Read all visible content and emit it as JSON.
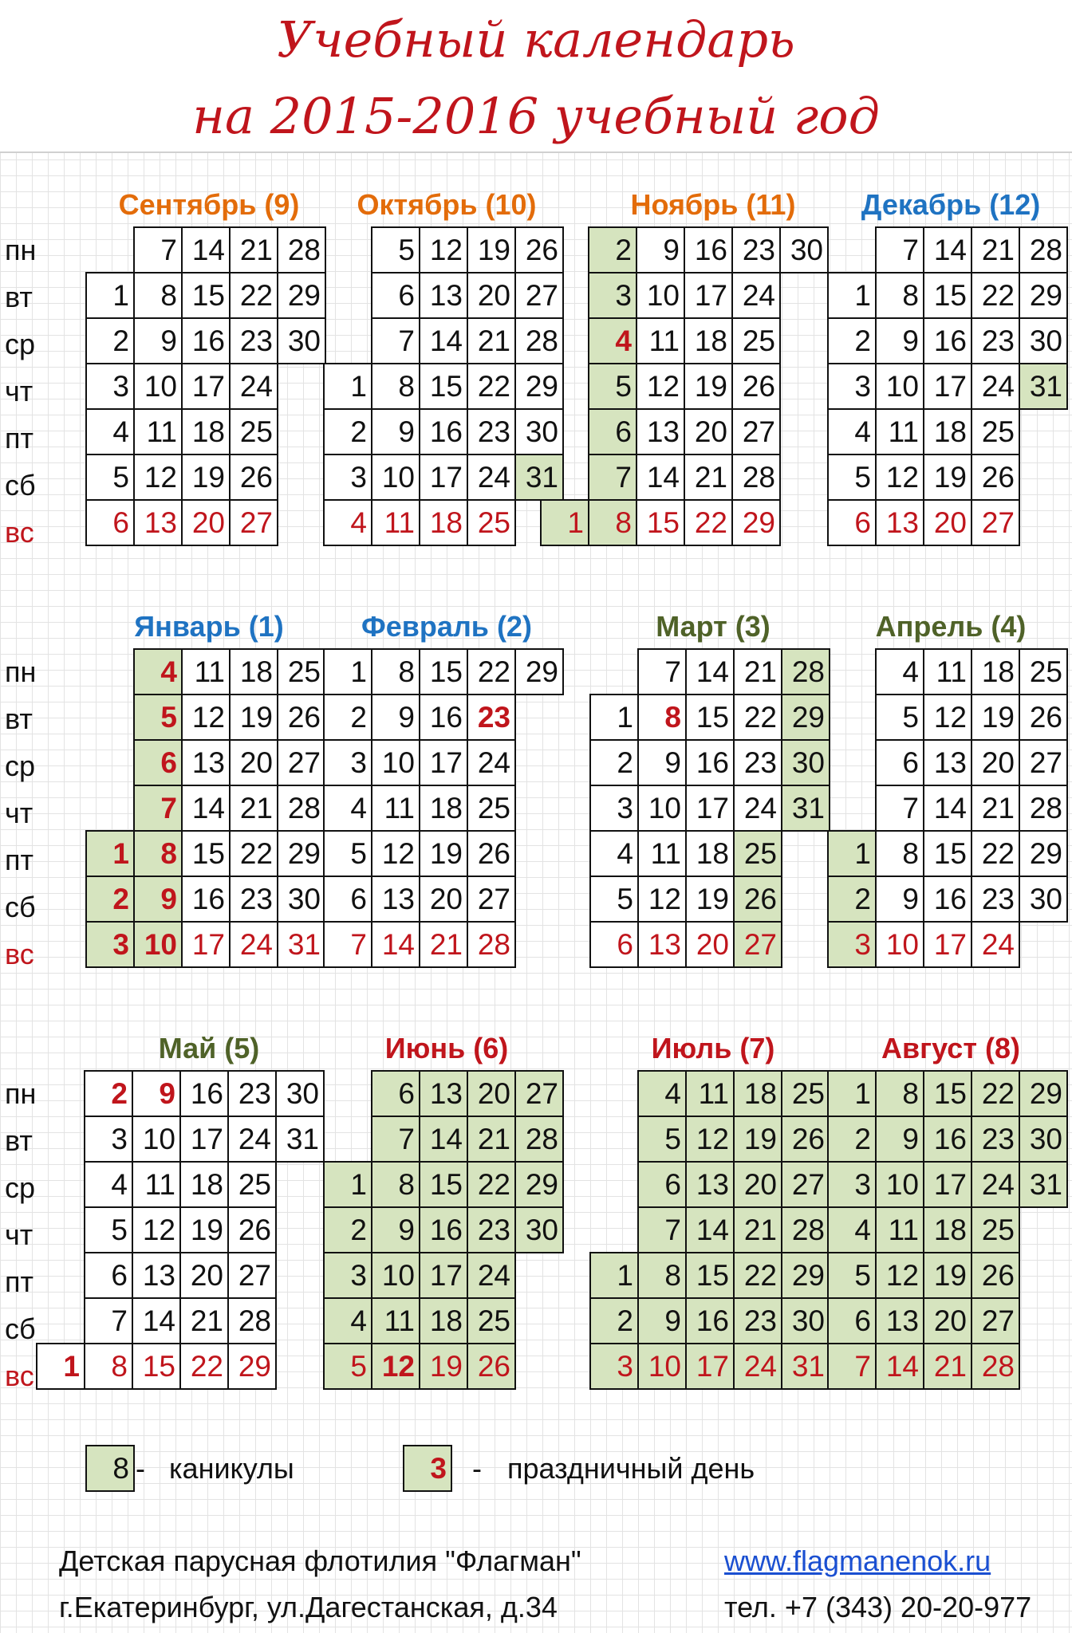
{
  "title": {
    "line1": "Учебный календарь",
    "line2": "на 2015-2016 учебный год"
  },
  "weekdays": [
    "пн",
    "вт",
    "ср",
    "чт",
    "пт",
    "сб",
    "вс"
  ],
  "colors": {
    "autumn": "#e36c0a",
    "winter": "#1f73c2",
    "spring": "#4f6228",
    "summer": "#c0151c",
    "vacation": "#d6e4bf",
    "holiday": "#c0151c"
  },
  "months": [
    {
      "name": "Сентябрь (9)",
      "season": "autumn",
      "weeks": [
        [
          null,
          1,
          2,
          3,
          4,
          5,
          6
        ],
        [
          7,
          8,
          9,
          10,
          11,
          12,
          13
        ],
        [
          14,
          15,
          16,
          17,
          18,
          19,
          20
        ],
        [
          21,
          22,
          23,
          24,
          25,
          26,
          27
        ],
        [
          28,
          29,
          30,
          null,
          null,
          null,
          null
        ]
      ],
      "vacation": [],
      "holidays": []
    },
    {
      "name": "Октябрь (10)",
      "season": "autumn",
      "weeks": [
        [
          null,
          null,
          null,
          1,
          2,
          3,
          4
        ],
        [
          5,
          6,
          7,
          8,
          9,
          10,
          11
        ],
        [
          12,
          13,
          14,
          15,
          16,
          17,
          18
        ],
        [
          19,
          20,
          21,
          22,
          23,
          24,
          25
        ],
        [
          26,
          27,
          28,
          29,
          30,
          31,
          null
        ]
      ],
      "vacation": [
        31
      ],
      "holidays": []
    },
    {
      "name": "Ноябрь (11)",
      "season": "autumn",
      "weeks": [
        [
          null,
          null,
          null,
          null,
          null,
          null,
          1
        ],
        [
          2,
          3,
          4,
          5,
          6,
          7,
          8
        ],
        [
          9,
          10,
          11,
          12,
          13,
          14,
          15
        ],
        [
          16,
          17,
          18,
          19,
          20,
          21,
          22
        ],
        [
          23,
          24,
          25,
          26,
          27,
          28,
          29
        ],
        [
          30,
          null,
          null,
          null,
          null,
          null,
          null
        ]
      ],
      "vacation": [
        1,
        2,
        3,
        4,
        5,
        6,
        7,
        8
      ],
      "holidays": [
        4
      ]
    },
    {
      "name": "Декабрь (12)",
      "season": "winter",
      "weeks": [
        [
          null,
          1,
          2,
          3,
          4,
          5,
          6
        ],
        [
          7,
          8,
          9,
          10,
          11,
          12,
          13
        ],
        [
          14,
          15,
          16,
          17,
          18,
          19,
          20
        ],
        [
          21,
          22,
          23,
          24,
          25,
          26,
          27
        ],
        [
          28,
          29,
          30,
          31,
          null,
          null,
          null
        ]
      ],
      "vacation": [
        31
      ],
      "holidays": []
    },
    {
      "name": "Январь (1)",
      "season": "winter",
      "weeks": [
        [
          null,
          null,
          null,
          null,
          1,
          2,
          3
        ],
        [
          4,
          5,
          6,
          7,
          8,
          9,
          10
        ],
        [
          11,
          12,
          13,
          14,
          15,
          16,
          17
        ],
        [
          18,
          19,
          20,
          21,
          22,
          23,
          24
        ],
        [
          25,
          26,
          27,
          28,
          29,
          30,
          31
        ]
      ],
      "vacation": [
        1,
        2,
        3,
        4,
        5,
        6,
        7,
        8,
        9,
        10
      ],
      "holidays": [
        1,
        2,
        3,
        4,
        5,
        6,
        7,
        8,
        9,
        10
      ]
    },
    {
      "name": "Февраль (2)",
      "season": "winter",
      "weeks": [
        [
          1,
          2,
          3,
          4,
          5,
          6,
          7
        ],
        [
          8,
          9,
          10,
          11,
          12,
          13,
          14
        ],
        [
          15,
          16,
          17,
          18,
          19,
          20,
          21
        ],
        [
          22,
          23,
          24,
          25,
          26,
          27,
          28
        ],
        [
          29,
          null,
          null,
          null,
          null,
          null,
          null
        ]
      ],
      "vacation": [],
      "holidays": [
        23
      ]
    },
    {
      "name": "Март (3)",
      "season": "spring",
      "weeks": [
        [
          null,
          1,
          2,
          3,
          4,
          5,
          6
        ],
        [
          7,
          8,
          9,
          10,
          11,
          12,
          13
        ],
        [
          14,
          15,
          16,
          17,
          18,
          19,
          20
        ],
        [
          21,
          22,
          23,
          24,
          25,
          26,
          27
        ],
        [
          28,
          29,
          30,
          31,
          null,
          null,
          null
        ]
      ],
      "vacation": [
        25,
        26,
        27,
        28,
        29,
        30,
        31
      ],
      "holidays": [
        8
      ]
    },
    {
      "name": "Апрель (4)",
      "season": "spring",
      "weeks": [
        [
          null,
          null,
          null,
          null,
          1,
          2,
          3
        ],
        [
          4,
          5,
          6,
          7,
          8,
          9,
          10
        ],
        [
          11,
          12,
          13,
          14,
          15,
          16,
          17
        ],
        [
          18,
          19,
          20,
          21,
          22,
          23,
          24
        ],
        [
          25,
          26,
          27,
          28,
          29,
          30,
          null
        ]
      ],
      "vacation": [
        1,
        2,
        3
      ],
      "holidays": []
    },
    {
      "name": "Май (5)",
      "season": "spring",
      "weeks": [
        [
          null,
          null,
          null,
          null,
          null,
          null,
          1
        ],
        [
          2,
          3,
          4,
          5,
          6,
          7,
          8
        ],
        [
          9,
          10,
          11,
          12,
          13,
          14,
          15
        ],
        [
          16,
          17,
          18,
          19,
          20,
          21,
          22
        ],
        [
          23,
          24,
          25,
          26,
          27,
          28,
          29
        ],
        [
          30,
          31,
          null,
          null,
          null,
          null,
          null
        ]
      ],
      "vacation": [],
      "holidays": [
        1,
        2,
        9
      ]
    },
    {
      "name": "Июнь (6)",
      "season": "summer",
      "weeks": [
        [
          null,
          null,
          1,
          2,
          3,
          4,
          5
        ],
        [
          6,
          7,
          8,
          9,
          10,
          11,
          12
        ],
        [
          13,
          14,
          15,
          16,
          17,
          18,
          19
        ],
        [
          20,
          21,
          22,
          23,
          24,
          25,
          26
        ],
        [
          27,
          28,
          29,
          30,
          null,
          null,
          null
        ]
      ],
      "vacation": "all",
      "holidays": [
        12
      ]
    },
    {
      "name": "Июль (7)",
      "season": "summer",
      "weeks": [
        [
          null,
          null,
          null,
          null,
          1,
          2,
          3
        ],
        [
          4,
          5,
          6,
          7,
          8,
          9,
          10
        ],
        [
          11,
          12,
          13,
          14,
          15,
          16,
          17
        ],
        [
          18,
          19,
          20,
          21,
          22,
          23,
          24
        ],
        [
          25,
          26,
          27,
          28,
          29,
          30,
          31
        ]
      ],
      "vacation": "all",
      "holidays": []
    },
    {
      "name": "Август (8)",
      "season": "summer",
      "weeks": [
        [
          1,
          2,
          3,
          4,
          5,
          6,
          7
        ],
        [
          8,
          9,
          10,
          11,
          12,
          13,
          14
        ],
        [
          15,
          16,
          17,
          18,
          19,
          20,
          21
        ],
        [
          22,
          23,
          24,
          25,
          26,
          27,
          28
        ],
        [
          29,
          30,
          31,
          null,
          null,
          null,
          null
        ]
      ],
      "vacation": "all",
      "holidays": []
    }
  ],
  "legend": [
    {
      "sample": "8",
      "dash": "-",
      "label": "каникулы",
      "type": "vacation"
    },
    {
      "sample": "3",
      "dash": "-",
      "label": "праздничный день",
      "type": "holiday"
    }
  ],
  "footer": {
    "org": "Детская парусная флотилия \"Флагман\"",
    "address": "г.Екатеринбург, ул.Дагестанская, д.34",
    "website": "www.flagmanenok.ru",
    "phone": "тел. +7 (343) 20-20-977"
  }
}
